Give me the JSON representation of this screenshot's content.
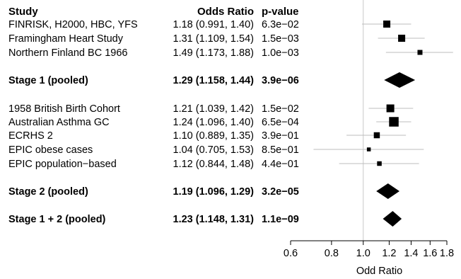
{
  "chart_data": {
    "type": "forest",
    "headers": {
      "study": "Study",
      "or": "Odds Ratio",
      "p": "p-value"
    },
    "rows": [
      {
        "label": "FINRISK, H2000, HBC, YFS",
        "or_text": "1.18 (0.991, 1.40)",
        "p_text": "6.3e−02",
        "or": 1.18,
        "lo": 0.991,
        "hi": 1.4,
        "weight": 1.0,
        "pooled": false
      },
      {
        "label": "Framingham Heart Study",
        "or_text": "1.31 (1.109, 1.54)",
        "p_text": "1.5e−03",
        "or": 1.31,
        "lo": 1.109,
        "hi": 1.54,
        "weight": 1.0,
        "pooled": false
      },
      {
        "label": "Northern Finland BC 1966",
        "or_text": "1.49 (1.173, 1.88)",
        "p_text": "1.0e−03",
        "or": 1.49,
        "lo": 1.173,
        "hi": 1.88,
        "weight": 0.7,
        "pooled": false
      },
      {
        "label": "Stage 1 (pooled)",
        "or_text": "1.29 (1.158, 1.44)",
        "p_text": "3.9e−06",
        "or": 1.29,
        "lo": 1.158,
        "hi": 1.44,
        "pooled": true
      },
      {
        "label": "1958 British Birth Cohort",
        "or_text": "1.21 (1.039, 1.42)",
        "p_text": "1.5e−02",
        "or": 1.21,
        "lo": 1.039,
        "hi": 1.42,
        "weight": 1.1,
        "pooled": false
      },
      {
        "label": "Australian Asthma GC",
        "or_text": "1.24 (1.096, 1.40)",
        "p_text": "6.5e−04",
        "or": 1.24,
        "lo": 1.096,
        "hi": 1.4,
        "weight": 1.35,
        "pooled": false
      },
      {
        "label": "ECRHS 2",
        "or_text": "1.10 (0.889, 1.35)",
        "p_text": "3.9e−01",
        "or": 1.1,
        "lo": 0.889,
        "hi": 1.35,
        "weight": 0.85,
        "pooled": false
      },
      {
        "label": "EPIC obese cases",
        "or_text": "1.04 (0.705, 1.53)",
        "p_text": "8.5e−01",
        "or": 1.04,
        "lo": 0.705,
        "hi": 1.53,
        "weight": 0.55,
        "pooled": false
      },
      {
        "label": "EPIC population−based",
        "or_text": "1.12 (0.844, 1.48)",
        "p_text": "4.4e−01",
        "or": 1.12,
        "lo": 0.844,
        "hi": 1.48,
        "weight": 0.65,
        "pooled": false
      },
      {
        "label": "Stage 2 (pooled)",
        "or_text": "1.19 (1.096, 1.29)",
        "p_text": "3.2e−05",
        "or": 1.19,
        "lo": 1.096,
        "hi": 1.29,
        "pooled": true
      },
      {
        "label": "Stage 1 + 2 (pooled)",
        "or_text": "1.23 (1.148, 1.31)",
        "p_text": "1.1e−09",
        "or": 1.23,
        "lo": 1.148,
        "hi": 1.31,
        "pooled": true
      }
    ],
    "x_axis": {
      "label": "Odd Ratio",
      "scale": "log",
      "ticks": [
        0.6,
        0.8,
        1.0,
        1.2,
        1.4,
        1.6,
        1.8
      ],
      "tick_labels": [
        "0.6",
        "0.8",
        "1.0",
        "1.2",
        "1.4",
        "1.6",
        "1.8"
      ],
      "range": [
        0.6,
        1.8
      ],
      "reference_line": 1.0
    },
    "colors": {
      "marker": "#000000",
      "ci_line": "#bdbdbd",
      "reference_line": "#c8c8c8",
      "axis": "#000000"
    }
  }
}
